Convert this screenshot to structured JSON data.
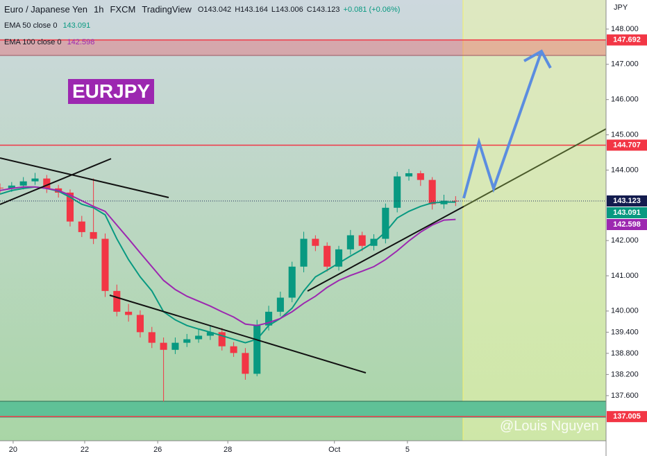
{
  "header": {
    "symbol": "Euro / Japanese Yen",
    "interval": "1h",
    "exchange": "FXCM",
    "source": "TradingView",
    "open": "O143.042",
    "high": "H143.164",
    "low": "L143.006",
    "close": "C143.123",
    "change": "+0.081 (+0.06%)"
  },
  "chart_data": {
    "type": "candlestick",
    "title": "EURJPY",
    "y_unit": "JPY",
    "watermark": "@Louis Nguyen",
    "x": [
      0,
      8,
      16,
      24,
      32,
      40,
      48,
      56,
      64,
      72,
      80,
      88,
      96,
      104,
      112,
      120,
      128,
      136,
      144,
      152,
      160,
      168,
      176,
      184,
      192,
      200,
      208,
      216,
      224,
      232,
      240,
      248,
      256,
      264,
      272,
      280,
      288,
      296,
      304,
      312
    ],
    "open": [
      143.5,
      143.48,
      143.56,
      143.68,
      143.76,
      143.48,
      143.36,
      142.54,
      142.24,
      142.05,
      140.57,
      139.98,
      139.89,
      139.4,
      139.1,
      138.9,
      139.1,
      139.2,
      139.3,
      139.4,
      139.0,
      138.81,
      138.22,
      139.59,
      139.98,
      140.38,
      141.26,
      142.05,
      141.85,
      141.26,
      141.75,
      142.15,
      141.85,
      142.05,
      142.93,
      143.82,
      143.91,
      143.72,
      143.03,
      143.13
    ],
    "high": [
      143.62,
      143.66,
      143.8,
      143.92,
      143.86,
      143.58,
      143.45,
      142.7,
      143.76,
      142.2,
      140.75,
      140.2,
      140.02,
      139.55,
      139.25,
      139.25,
      139.35,
      139.5,
      139.58,
      139.52,
      139.12,
      138.95,
      139.75,
      140.15,
      140.55,
      141.4,
      142.25,
      142.15,
      141.95,
      141.85,
      142.3,
      142.25,
      142.18,
      143.05,
      143.95,
      144.03,
      143.98,
      143.8,
      143.3,
      143.26
    ],
    "low": [
      143.35,
      143.38,
      143.45,
      143.58,
      143.35,
      143.22,
      142.4,
      142.1,
      141.9,
      140.4,
      139.85,
      139.7,
      139.25,
      138.95,
      137.43,
      138.78,
      138.98,
      139.1,
      139.18,
      138.88,
      138.7,
      138.05,
      138.15,
      139.45,
      139.85,
      140.25,
      141.1,
      141.7,
      141.12,
      141.15,
      141.6,
      141.7,
      141.72,
      141.92,
      142.8,
      143.7,
      143.55,
      142.88,
      142.9,
      142.98
    ],
    "close": [
      143.48,
      143.56,
      143.68,
      143.76,
      143.48,
      143.36,
      142.54,
      142.24,
      142.05,
      140.57,
      139.98,
      139.89,
      139.4,
      139.1,
      138.9,
      139.1,
      139.2,
      139.3,
      139.4,
      139.0,
      138.81,
      138.22,
      139.59,
      139.98,
      140.38,
      141.26,
      142.05,
      141.85,
      141.26,
      141.75,
      142.15,
      141.85,
      142.05,
      142.93,
      143.82,
      143.91,
      143.72,
      143.03,
      143.13,
      143.12
    ],
    "up_color": "#089981",
    "down_color": "#f23645",
    "series": [
      {
        "name": "EMA 50 close 0",
        "color": "#089981",
        "last": 143.091,
        "values": [
          143.32,
          143.42,
          143.48,
          143.52,
          143.48,
          143.4,
          143.23,
          143.03,
          142.93,
          142.73,
          142.05,
          141.46,
          140.97,
          140.57,
          139.98,
          139.75,
          139.59,
          139.49,
          139.4,
          139.3,
          139.2,
          139.1,
          139.2,
          139.59,
          139.79,
          140.08,
          140.57,
          140.97,
          141.16,
          141.36,
          141.56,
          141.75,
          141.95,
          142.24,
          142.64,
          142.83,
          142.97,
          143.07,
          143.09,
          143.09
        ]
      },
      {
        "name": "EMA 100 close 0",
        "color": "#9c27b0",
        "last": 142.598,
        "values": [
          143.42,
          143.48,
          143.52,
          143.52,
          143.48,
          143.42,
          143.29,
          143.13,
          142.97,
          142.83,
          142.44,
          142.05,
          141.65,
          141.26,
          140.87,
          140.61,
          140.42,
          140.28,
          140.14,
          139.98,
          139.83,
          139.63,
          139.59,
          139.67,
          139.79,
          139.98,
          140.22,
          140.42,
          140.67,
          140.87,
          141.01,
          141.13,
          141.26,
          141.46,
          141.71,
          141.99,
          142.24,
          142.44,
          142.58,
          142.6
        ]
      }
    ],
    "last_price": 143.123,
    "levels": [
      147.692,
      144.707,
      137.005
    ],
    "level_color": "#f23645",
    "xlim": [
      0,
      415
    ],
    "xticks": [
      {
        "value": 9,
        "label": "20"
      },
      {
        "value": 58,
        "label": "22"
      },
      {
        "value": 108,
        "label": "26"
      },
      {
        "value": 156,
        "label": "28"
      },
      {
        "value": 229,
        "label": "Oct"
      },
      {
        "value": 279,
        "label": "5"
      }
    ],
    "ylim": [
      136.32,
      148.825
    ],
    "yticks": [
      {
        "value": 148,
        "label": "148.000"
      },
      {
        "value": 147,
        "label": "147.000"
      },
      {
        "value": 146,
        "label": "146.000"
      },
      {
        "value": 145,
        "label": "145.000"
      },
      {
        "value": 144,
        "label": "144.000"
      },
      {
        "value": 142,
        "label": "142.000"
      },
      {
        "value": 141,
        "label": "141.000"
      },
      {
        "value": 140,
        "label": "140.000"
      },
      {
        "value": 139.4,
        "label": "139.400"
      },
      {
        "value": 138.8,
        "label": "138.800"
      },
      {
        "value": 138.2,
        "label": "138.200"
      },
      {
        "value": 137.6,
        "label": "137.600"
      }
    ]
  }
}
